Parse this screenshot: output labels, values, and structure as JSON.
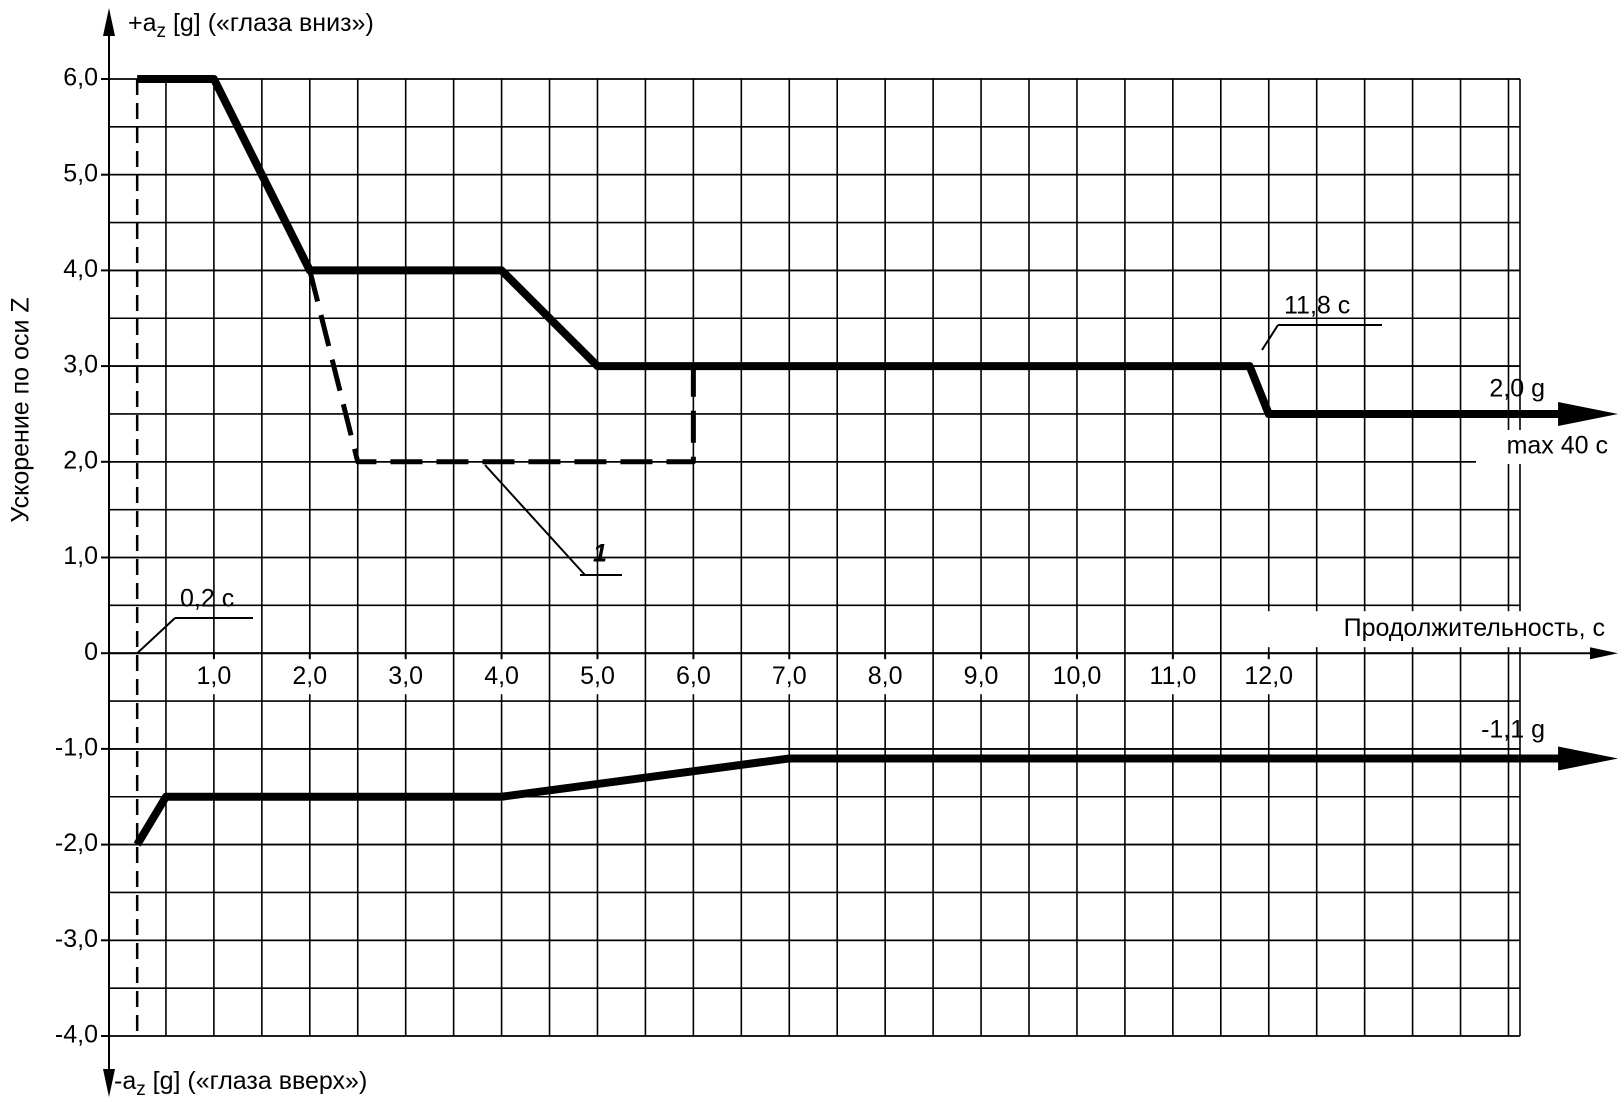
{
  "chart_data": {
    "type": "line",
    "y_label_top": {
      "main": "+a",
      "sub": "z",
      "rest": " [g] («глаза вниз»)"
    },
    "y_label_bottom": {
      "main": "-a",
      "sub": "z",
      "rest": " [g] («глаза вверх»)"
    },
    "y_label": "Ускорение по оси Z",
    "x_label": "Продолжительность, с",
    "xlim": [
      0,
      14.62
    ],
    "ylim": [
      -4,
      6
    ],
    "xticks": [
      {
        "value": 1,
        "label": "1,0"
      },
      {
        "value": 2,
        "label": "2,0"
      },
      {
        "value": 3,
        "label": "3,0"
      },
      {
        "value": 4,
        "label": "4,0"
      },
      {
        "value": 5,
        "label": "5,0"
      },
      {
        "value": 6,
        "label": "6,0"
      },
      {
        "value": 7,
        "label": "7,0"
      },
      {
        "value": 8,
        "label": "8,0"
      },
      {
        "value": 9,
        "label": "9,0"
      },
      {
        "value": 10,
        "label": "10,0"
      },
      {
        "value": 11,
        "label": "11,0"
      },
      {
        "value": 12,
        "label": "12,0"
      }
    ],
    "yticks": [
      {
        "value": -4,
        "label": "-4,0"
      },
      {
        "value": -3,
        "label": "-3,0"
      },
      {
        "value": -2,
        "label": "-2,0"
      },
      {
        "value": -1,
        "label": "-1,0"
      },
      0,
      {
        "value": 1,
        "label": "1,0"
      },
      {
        "value": 2,
        "label": "2,0"
      },
      {
        "value": 3,
        "label": "3,0"
      },
      {
        "value": 4,
        "label": "4,0"
      },
      {
        "value": 5,
        "label": "5,0"
      },
      {
        "value": 6,
        "label": "6,0"
      }
    ],
    "grid": true,
    "series": [
      {
        "color": "#000000",
        "dashed": false,
        "x": [
          0.2,
          1.0,
          2.0,
          4.0,
          5.0,
          11.8,
          12.0,
          14.6
        ],
        "values": [
          6,
          6,
          4,
          4,
          3,
          3,
          2.5,
          2.5
        ]
      },
      {
        "color": "#000000",
        "dashed": true,
        "x": [
          2.0,
          2.5,
          6.0,
          6.0
        ],
        "values": [
          4,
          2,
          2,
          3
        ]
      },
      {
        "color": "#000000",
        "dashed": false,
        "x": [
          0.2,
          0.5,
          4.0,
          7.0,
          14.6
        ],
        "values": [
          -2,
          -1.5,
          -1.5,
          -1.1,
          -1.1
        ]
      }
    ],
    "annotations": [
      "11,8 с",
      "0,2 с",
      "2,0 g",
      "max 40 c",
      "-1,1 g",
      "1"
    ]
  }
}
